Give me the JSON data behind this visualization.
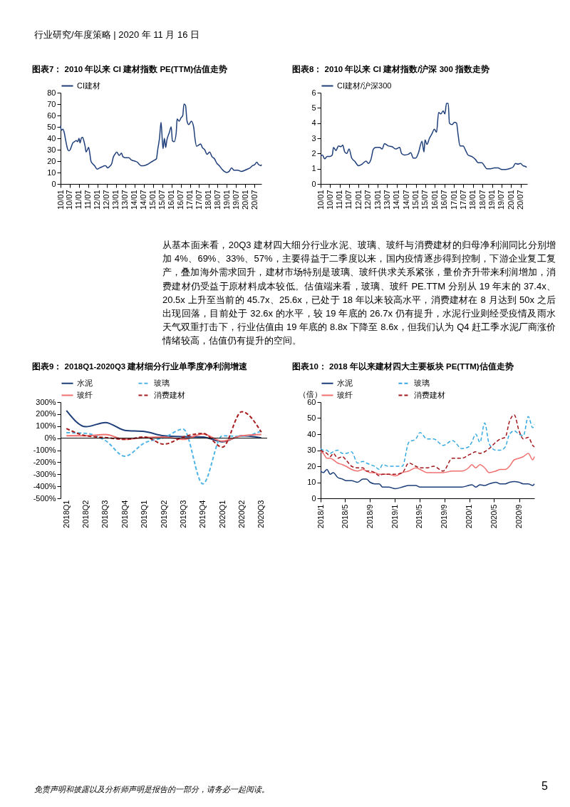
{
  "chart_data": [
    {
      "type": "line",
      "title": "图表7：  2010 年以来 CI 建材指数 PE(TTM)估值走势",
      "legend": "top",
      "ylim": [
        0,
        80
      ],
      "yticks": [
        0,
        10,
        20,
        30,
        40,
        50,
        60,
        70,
        80
      ],
      "xlim": [
        "2010-01-01",
        "2020-11-15"
      ],
      "xticks": [
        {
          "value": "2010-01-01",
          "label": "10/01"
        },
        {
          "value": "2010-07-01",
          "label": "10/07"
        },
        {
          "value": "2011-01-01",
          "label": "11/01"
        },
        {
          "value": "2011-07-01",
          "label": "11/07"
        },
        {
          "value": "2012-01-01",
          "label": "12/01"
        },
        {
          "value": "2012-07-01",
          "label": "12/07"
        },
        {
          "value": "2013-01-01",
          "label": "13/01"
        },
        {
          "value": "2013-07-01",
          "label": "13/07"
        },
        {
          "value": "2014-01-01",
          "label": "14/01"
        },
        {
          "value": "2014-07-01",
          "label": "14/07"
        },
        {
          "value": "2015-01-01",
          "label": "15/01"
        },
        {
          "value": "2015-07-01",
          "label": "15/07"
        },
        {
          "value": "2016-01-01",
          "label": "16/01"
        },
        {
          "value": "2016-07-01",
          "label": "16/07"
        },
        {
          "value": "2017-01-01",
          "label": "17/01"
        },
        {
          "value": "2017-07-01",
          "label": "17/07"
        },
        {
          "value": "2018-01-01",
          "label": "18/01"
        },
        {
          "value": "2018-07-01",
          "label": "18/07"
        },
        {
          "value": "2019-01-01",
          "label": "19/01"
        },
        {
          "value": "2019-07-01",
          "label": "19/07"
        },
        {
          "value": "2020-01-01",
          "label": "20/01"
        },
        {
          "value": "2020-07-01",
          "label": "20/07"
        }
      ],
      "x": [
        "2010-01-01",
        "2010-01-15",
        "2010-02-15",
        "2010-03-15",
        "2010-04-05",
        "2010-05-01",
        "2010-05-25",
        "2010-06-15",
        "2010-07-10",
        "2010-08-05",
        "2010-09-01",
        "2010-10-01",
        "2010-11-10",
        "2010-12-05",
        "2011-01-01",
        "2011-01-20",
        "2011-02-15",
        "2011-03-10",
        "2011-04-05",
        "2011-05-01",
        "2011-05-20",
        "2011-06-15",
        "2011-07-10",
        "2011-08-01",
        "2011-08-25",
        "2011-09-20",
        "2011-11-05",
        "2011-12-25",
        "2012-02-10",
        "2012-04-01",
        "2012-05-20",
        "2012-06-10",
        "2012-07-20",
        "2012-08-20",
        "2012-10-10",
        "2012-11-05",
        "2012-12-10",
        "2013-01-15",
        "2013-03-05",
        "2013-04-20",
        "2013-05-15",
        "2013-07-01",
        "2013-09-10",
        "2013-11-01",
        "2014-01-10",
        "2014-03-01",
        "2014-04-10",
        "2014-05-10",
        "2014-07-01",
        "2014-09-10",
        "2014-11-20",
        "2015-02-05",
        "2015-03-10",
        "2015-04-05",
        "2015-05-10",
        "2015-06-10",
        "2015-07-05",
        "2015-07-20",
        "2015-08-15",
        "2015-09-10",
        "2015-10-01",
        "2015-11-20",
        "2015-12-28",
        "2016-01-20",
        "2016-02-25",
        "2016-04-05",
        "2016-04-22",
        "2016-06-01",
        "2016-07-10",
        "2016-08-12",
        "2016-09-05",
        "2016-10-05",
        "2016-11-05",
        "2016-12-10",
        "2017-01-28",
        "2017-03-15",
        "2017-04-10",
        "2017-05-12",
        "2017-06-20",
        "2017-08-01",
        "2017-09-02",
        "2017-10-20",
        "2017-12-05",
        "2018-01-25",
        "2018-03-12",
        "2018-05-01",
        "2018-06-18",
        "2018-08-05",
        "2018-09-25",
        "2018-11-10",
        "2018-12-28",
        "2019-02-15",
        "2019-04-05",
        "2019-05-22",
        "2019-08-05",
        "2019-10-15",
        "2019-12-25",
        "2020-02-12",
        "2020-04-01",
        "2020-05-20",
        "2020-07-05",
        "2020-08-15",
        "2020-09-18",
        "2020-11-05",
        "2020-11-15"
      ],
      "series": [
        {
          "name": "CI建材",
          "color": "#1f3f7a",
          "values": [
            51,
            47,
            48,
            45,
            40,
            34,
            30,
            29,
            30,
            33,
            36,
            37,
            38,
            37,
            40,
            36,
            40,
            41,
            38,
            33,
            28,
            30,
            32,
            27,
            20,
            18,
            16,
            13,
            14,
            15,
            16,
            16,
            14,
            15,
            18,
            23,
            26,
            28,
            25,
            27,
            24,
            23,
            23,
            21,
            20,
            19,
            17,
            16,
            16,
            17,
            19,
            21,
            22,
            30,
            40,
            54,
            38,
            31,
            40,
            32,
            38,
            45,
            50,
            38,
            37,
            45,
            57,
            55,
            58,
            60,
            70,
            69,
            55,
            52,
            55,
            50,
            40,
            33,
            34,
            35,
            32,
            30,
            26,
            28,
            24,
            22,
            18,
            16,
            13,
            11,
            10,
            11,
            14,
            12,
            12,
            11,
            12,
            13,
            14,
            16,
            17,
            19,
            17,
            16,
            17
          ]
        }
      ],
      "annotations": [
        "行业研究/年度策略 | 2020 年 11 月 16 日"
      ]
    },
    {
      "type": "line",
      "title": "图表8：  2010 年以来 CI 建材指数/沪深 300 指数走势",
      "legend": "top",
      "ylim": [
        0,
        6
      ],
      "yticks": [
        0,
        1,
        2,
        3,
        4,
        5,
        6
      ],
      "xlim": [
        "2010-01-01",
        "2020-11-05"
      ],
      "xticks": [
        {
          "value": "2010-01-01",
          "label": "10/01"
        },
        {
          "value": "2010-07-01",
          "label": "10/07"
        },
        {
          "value": "2011-01-01",
          "label": "11/01"
        },
        {
          "value": "2011-07-01",
          "label": "11/07"
        },
        {
          "value": "2012-01-01",
          "label": "12/01"
        },
        {
          "value": "2012-07-01",
          "label": "12/07"
        },
        {
          "value": "2013-01-01",
          "label": "13/01"
        },
        {
          "value": "2013-07-01",
          "label": "13/07"
        },
        {
          "value": "2014-01-01",
          "label": "14/01"
        },
        {
          "value": "2014-07-01",
          "label": "14/07"
        },
        {
          "value": "2015-01-01",
          "label": "15/01"
        },
        {
          "value": "2015-07-01",
          "label": "15/07"
        },
        {
          "value": "2016-01-01",
          "label": "16/01"
        },
        {
          "value": "2016-07-01",
          "label": "16/07"
        },
        {
          "value": "2017-01-01",
          "label": "17/01"
        },
        {
          "value": "2017-07-01",
          "label": "17/07"
        },
        {
          "value": "2018-01-01",
          "label": "18/01"
        },
        {
          "value": "2018-07-01",
          "label": "18/07"
        },
        {
          "value": "2019-01-01",
          "label": "19/01"
        },
        {
          "value": "2019-07-01",
          "label": "19/07"
        },
        {
          "value": "2020-01-01",
          "label": "20/01"
        },
        {
          "value": "2020-07-01",
          "label": "20/07"
        }
      ],
      "x": [
        "2010-01-01",
        "2010-02-05",
        "2010-03-20",
        "2010-05-05",
        "2010-06-25",
        "2010-08-12",
        "2010-09-05",
        "2010-10-22",
        "2010-12-10",
        "2011-01-28",
        "2011-03-01",
        "2011-04-08",
        "2011-05-15",
        "2011-07-01",
        "2011-08-20",
        "2011-10-15",
        "2011-12-28",
        "2012-03-05",
        "2012-05-20",
        "2012-07-05",
        "2012-08-22",
        "2012-10-10",
        "2012-11-28",
        "2013-02-05",
        "2013-03-25",
        "2013-05-10",
        "2013-07-20",
        "2013-10-01",
        "2013-12-12",
        "2014-02-25",
        "2014-04-01",
        "2014-05-28",
        "2014-08-10",
        "2014-09-25",
        "2014-11-12",
        "2014-12-30",
        "2015-02-15",
        "2015-04-28",
        "2015-06-05",
        "2015-06-25",
        "2015-08-01",
        "2015-09-18",
        "2015-11-05",
        "2015-12-22",
        "2016-02-01",
        "2016-03-12",
        "2016-04-22",
        "2016-06-08",
        "2016-07-10",
        "2016-08-10",
        "2016-09-12",
        "2016-10-05",
        "2016-11-22",
        "2017-01-10",
        "2017-02-18",
        "2017-03-22",
        "2017-04-25",
        "2017-06-25",
        "2017-08-12",
        "2017-09-28",
        "2017-12-10",
        "2018-02-18",
        "2018-04-06",
        "2018-06-18",
        "2018-08-05",
        "2018-09-22",
        "2018-12-05",
        "2019-02-12",
        "2019-04-25",
        "2019-07-05",
        "2019-09-15",
        "2019-11-25",
        "2020-02-05",
        "2020-03-25",
        "2020-05-10",
        "2020-06-28",
        "2020-08-15",
        "2020-10-01",
        "2020-10-25"
      ],
      "series": [
        {
          "name": "CI建材/沪深300",
          "color": "#1f3f7a",
          "values": [
            1.85,
            1.9,
            1.65,
            1.8,
            1.8,
            1.9,
            2.4,
            2.2,
            2.5,
            2.45,
            2.55,
            2.1,
            2.0,
            2.3,
            1.7,
            1.5,
            1.2,
            1.3,
            1.5,
            1.35,
            1.6,
            2.3,
            2.4,
            2.4,
            2.3,
            2.65,
            2.5,
            2.45,
            2.3,
            2.4,
            2.0,
            1.9,
            1.95,
            2.05,
            1.7,
            1.7,
            2.0,
            2.8,
            2.1,
            2.9,
            2.6,
            3.0,
            3.3,
            3.6,
            3.4,
            4.7,
            4.6,
            4.8,
            4.6,
            5.3,
            5.3,
            4.0,
            3.9,
            4.05,
            4.0,
            3.2,
            2.5,
            2.5,
            2.2,
            1.9,
            1.8,
            1.6,
            1.4,
            1.4,
            1.2,
            1.0,
            1.0,
            1.05,
            1.05,
            0.95,
            0.95,
            1.0,
            1.1,
            1.35,
            1.3,
            1.35,
            1.2,
            1.15,
            1.1
          ]
        }
      ],
      "annotations": [
        "从基本面来看，20Q3 建材四大细分行业水泥、玻璃、玻纤与消费建材的归母净利润同比分别增加 4%、69%、33%、57%，主要得益于二季度以来，国内疫情逐步得到控制，下游企业复工复产，叠加海外需求回升，建材市场特别是玻璃、玻纤供求关系紧张，量价齐升带来利润增加，消费建材仍受益于原材料成本较低。估值端来看，玻璃、玻纤 PE.TTM 分别从 19 年末的 37.4x、20.5x 上升至当前的 45.7x、25.6x，已处于 18 年以来较高水平，消费建材在 8 月达到 50x 之后出现回落，目前处于 32.6x 的水平，较 19 年底的 26.7x 仍有提升，水泥行业则经受疫情及雨水天气双重打击下，行业估值由 19 年底的 8.8x 下降至 8.6x，但我们认为 Q4 赶工季水泥厂商涨价情绪较高，估值仍有提升的空间。"
      ]
    },
    {
      "type": "line",
      "title": "图表9：  2018Q1-2020Q3 建材细分行业单季度净利润增速",
      "legend": "top",
      "ylim": [
        -500,
        300
      ],
      "yticks": [
        {
          "value": -500,
          "label": "-500%"
        },
        {
          "value": -400,
          "label": "-400%"
        },
        {
          "value": -300,
          "label": "-300%"
        },
        {
          "value": -200,
          "label": "-200%"
        },
        {
          "value": -100,
          "label": "-100%"
        },
        {
          "value": 0,
          "label": "0%"
        },
        {
          "value": 100,
          "label": "100%"
        },
        {
          "value": 200,
          "label": "200%"
        },
        {
          "value": 300,
          "label": "300%"
        }
      ],
      "categories": [
        "2018Q1",
        "2018Q2",
        "2018Q3",
        "2018Q4",
        "2019Q1",
        "2019Q2",
        "2019Q3",
        "2019Q4",
        "2020Q1",
        "2020Q2",
        "2020Q3"
      ],
      "ref_lines": [
        {
          "axis": "y",
          "value": 0,
          "color": "#000000"
        }
      ],
      "series": [
        {
          "name": "水泥",
          "color": "#1f3f7a",
          "line_style": "solid",
          "values": [
            230,
            95,
            130,
            65,
            55,
            20,
            12,
            10,
            -30,
            20,
            3
          ]
        },
        {
          "name": "玻璃",
          "color": "#4fb4e6",
          "line_style": "dashed",
          "values": [
            45,
            40,
            -20,
            -150,
            -40,
            5,
            75,
            -380,
            20,
            15,
            60
          ]
        },
        {
          "name": "玻纤",
          "color": "#f07070",
          "line_style": "solid",
          "values": [
            20,
            20,
            30,
            -10,
            5,
            10,
            -10,
            35,
            -25,
            20,
            30
          ]
        },
        {
          "name": "消费建材",
          "color": "#a61c1c",
          "line_style": "dashed",
          "values": [
            80,
            20,
            5,
            -10,
            10,
            -50,
            10,
            40,
            -75,
            220,
            50
          ]
        }
      ]
    },
    {
      "type": "line",
      "title": "图表10：  2018 年以来建材四大主要板块 PE(TTM)估值走势",
      "ylabel": "（倍）",
      "legend": "top",
      "ylim": [
        0,
        60
      ],
      "yticks": [
        0,
        10,
        20,
        30,
        40,
        50,
        60
      ],
      "xlim": [
        "2018-01-01",
        "2020-11-15"
      ],
      "xticks": [
        {
          "value": "2018-01-01",
          "label": "2018/1"
        },
        {
          "value": "2018-05-01",
          "label": "2018/5"
        },
        {
          "value": "2018-09-01",
          "label": "2018/9"
        },
        {
          "value": "2019-01-01",
          "label": "2019/1"
        },
        {
          "value": "2019-05-01",
          "label": "2019/5"
        },
        {
          "value": "2019-09-01",
          "label": "2019/9"
        },
        {
          "value": "2020-01-01",
          "label": "2020/1"
        },
        {
          "value": "2020-05-01",
          "label": "2020/5"
        },
        {
          "value": "2020-09-01",
          "label": "2020/9"
        }
      ],
      "x": [
        "2018-01-01",
        "2018-01-14",
        "2018-02-01",
        "2018-02-17",
        "2018-03-04",
        "2018-03-26",
        "2018-04-18",
        "2018-05-05",
        "2018-06-02",
        "2018-07-01",
        "2018-07-28",
        "2018-08-14",
        "2018-09-01",
        "2018-09-23",
        "2018-10-16",
        "2018-11-01",
        "2018-11-30",
        "2019-01-03",
        "2019-02-06",
        "2019-03-10",
        "2019-04-13",
        "2019-05-04",
        "2019-06-07",
        "2019-07-10",
        "2019-08-25",
        "2019-10-10",
        "2019-11-25",
        "2019-12-28",
        "2020-01-13",
        "2020-02-01",
        "2020-02-22",
        "2020-03-16",
        "2020-04-07",
        "2020-05-10",
        "2020-06-01",
        "2020-06-25",
        "2020-07-16",
        "2020-08-08",
        "2020-09-01",
        "2020-09-22",
        "2020-10-16",
        "2020-11-07",
        "2020-11-15"
      ],
      "series": [
        {
          "name": "水泥",
          "color": "#1b3d78",
          "line_style": "solid",
          "values": [
            17,
            16,
            18,
            15,
            16,
            13,
            12,
            11,
            11,
            10,
            12,
            12,
            10,
            9,
            9,
            7,
            7,
            6,
            7,
            8,
            8,
            7,
            7,
            7,
            7,
            7,
            7,
            8,
            8.5,
            7,
            8.5,
            8,
            9,
            10,
            9,
            9,
            10,
            10.5,
            10,
            9,
            9,
            8,
            9
          ]
        },
        {
          "name": "玻璃",
          "color": "#33a9e0",
          "line_style": "dashed",
          "values": [
            31,
            30,
            30,
            28,
            29,
            30,
            28,
            28,
            29,
            22,
            23,
            22,
            21,
            20,
            18,
            21,
            20,
            20,
            20,
            35,
            37,
            41,
            37,
            37,
            33,
            36,
            31,
            32,
            35,
            40,
            35,
            47,
            34,
            30,
            30,
            32,
            40,
            42,
            40,
            39,
            51,
            44,
            46
          ]
        },
        {
          "name": "玻纤",
          "color": "#f07070",
          "line_style": "solid",
          "values": [
            29,
            28,
            25,
            25,
            24,
            22,
            21,
            20,
            18,
            17,
            18,
            17,
            16,
            16,
            15,
            15,
            15,
            14,
            16,
            17,
            19,
            18,
            16,
            16,
            16,
            17,
            17,
            19,
            21,
            19,
            21,
            19,
            16,
            17,
            18,
            18,
            20,
            24,
            25,
            26,
            28,
            24,
            26
          ]
        },
        {
          "name": "消费建材",
          "color": "#a0161a",
          "line_style": "dashed",
          "values": [
            30,
            29,
            28,
            26,
            28,
            25,
            26,
            24,
            20,
            19,
            19,
            17,
            17,
            16,
            14,
            15,
            15,
            15,
            16,
            22,
            20,
            19,
            19,
            20,
            17,
            25,
            25,
            27,
            28,
            29,
            28,
            29,
            31,
            35,
            37,
            38,
            48,
            52,
            42,
            37,
            38,
            33,
            32
          ]
        }
      ],
      "annotations": [
        "免责声明和披露以及分析师声明是报告的一部分，请务必一起阅读。",
        "5"
      ]
    }
  ]
}
